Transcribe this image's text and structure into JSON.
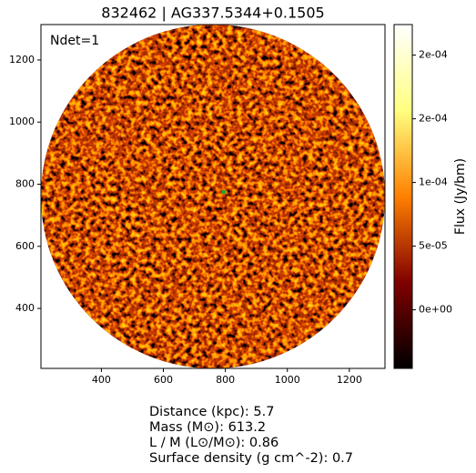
{
  "chart_data": {
    "type": "image",
    "title": "832462 | AG337.5344+0.1505",
    "annotation": "Ndet=1",
    "xlim": [
      205,
      1315
    ],
    "ylim": [
      207,
      1314
    ],
    "xticks": [
      400,
      600,
      800,
      1000,
      1200
    ],
    "yticks": [
      400,
      600,
      800,
      1000,
      1200
    ],
    "marker": {
      "x": [
        795
      ],
      "y": [
        775
      ],
      "color": "#2ca02c"
    },
    "colormap": "afmhot",
    "colorbar_label": "Flux (Jy/bm)",
    "clim": [
      -4.6e-05,
      0.000224
    ],
    "cticks": [
      {
        "value": 0.0002,
        "label": "2e-04"
      },
      {
        "value": 0.00015,
        "label": "2e-04"
      },
      {
        "value": 0.0001,
        "label": "1e-04"
      },
      {
        "value": 5e-05,
        "label": "5e-05"
      },
      {
        "value": 0,
        "label": "0e+00"
      }
    ],
    "footer": [
      "Distance (kpc): 5.7",
      "Mass (M⊙): 613.2",
      "L / M (L⊙/M⊙): 0.86",
      "Surface density (g cm^-2): 0.7"
    ]
  }
}
